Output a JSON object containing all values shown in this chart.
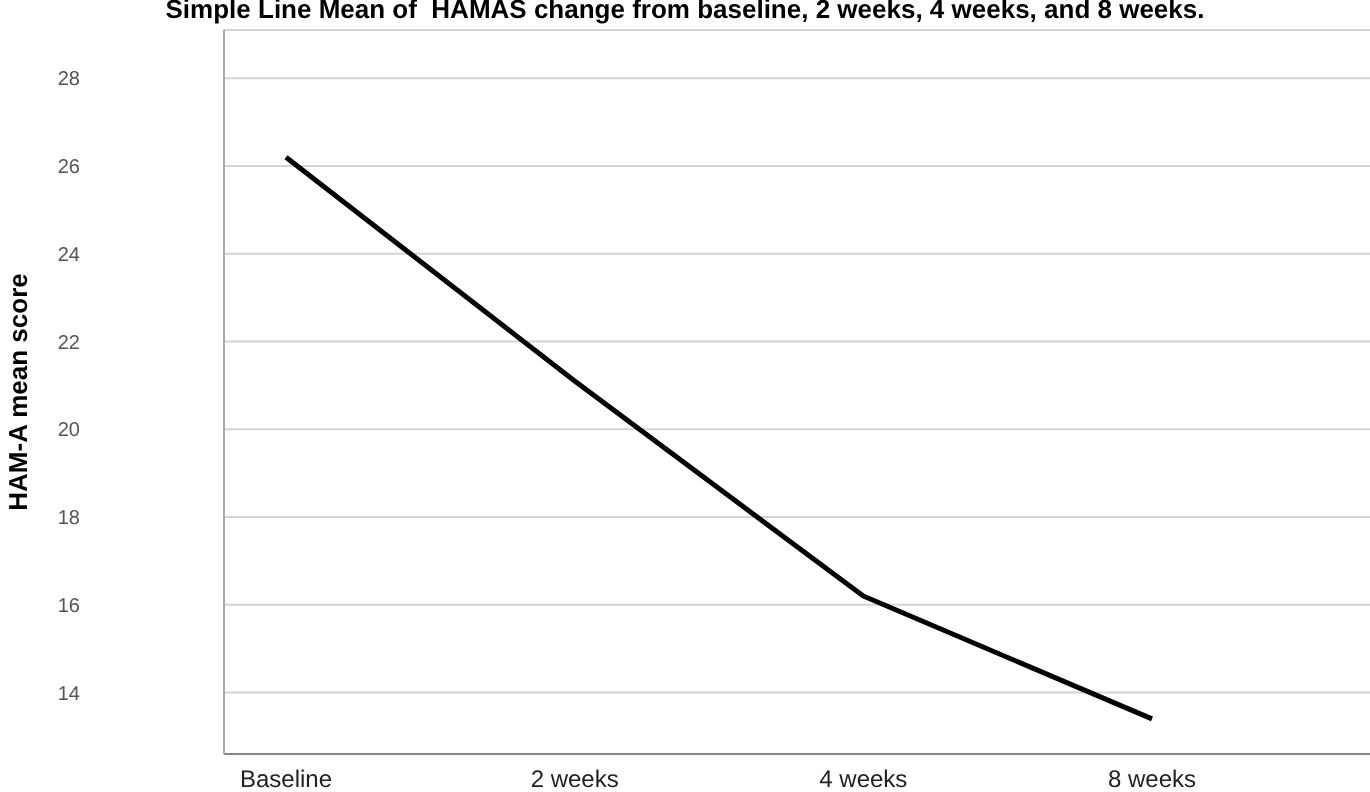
{
  "chart_data": {
    "type": "line",
    "title": "Simple Line Mean of  HAMAS change from baseline, 2 weeks, 4 weeks, and 8 weeks.",
    "ylabel": "HAM-A mean score",
    "categories": [
      "Baseline",
      "2 weeks",
      "4 weeks",
      "8 weeks"
    ],
    "series": [
      {
        "color": "#000000",
        "values": [
          26.2,
          21.1,
          16.2,
          13.4
        ]
      }
    ],
    "ylim": [
      12.6,
      29.1
    ],
    "yticks": [
      14,
      16,
      18,
      20,
      22,
      24,
      26,
      28
    ],
    "grid": "y",
    "marker": "none",
    "line_style": "solid",
    "legend": false
  }
}
